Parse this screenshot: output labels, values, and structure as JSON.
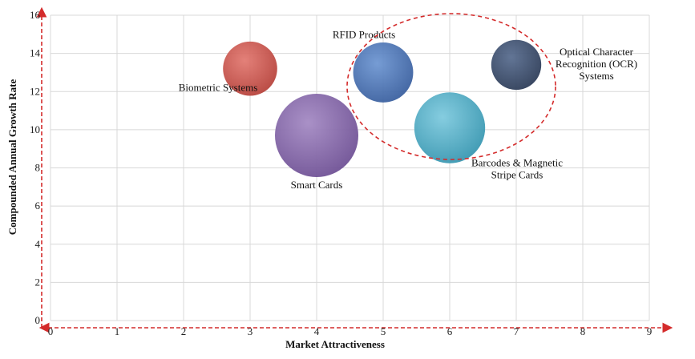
{
  "chart_data": {
    "type": "scatter",
    "subtype": "bubble",
    "xlabel": "Market Attractiveness",
    "ylabel": "Compounded Annual Growth Rate",
    "xlim": [
      0,
      9
    ],
    "ylim": [
      0,
      16
    ],
    "x_ticks": [
      "0",
      "1",
      "2",
      "3",
      "4",
      "5",
      "6",
      "7",
      "8",
      "9"
    ],
    "y_ticks": [
      "0",
      "2",
      "4",
      "6",
      "8",
      "10",
      "12",
      "14",
      "16"
    ],
    "grid": true,
    "points": [
      {
        "label": "Biometric Systems",
        "x": 3.0,
        "y": 13.2,
        "size": 0.65,
        "color": "#c9574f"
      },
      {
        "label": "Smart Cards",
        "x": 4.0,
        "y": 9.7,
        "size": 1.0,
        "color": "#8a6aab"
      },
      {
        "label": "RFID Products",
        "x": 5.0,
        "y": 13.0,
        "size": 0.72,
        "color": "#4a74b8"
      },
      {
        "label": "Barcodes & Magnetic Stripe Cards",
        "x": 6.0,
        "y": 10.1,
        "size": 0.85,
        "color": "#4cb0c8"
      },
      {
        "label": "Optical Character Recognition (OCR) Systems",
        "x": 7.0,
        "y": 13.4,
        "size": 0.6,
        "color": "#3c4f70"
      }
    ],
    "highlight": {
      "type": "ellipse",
      "members": [
        "RFID Products",
        "Barcodes & Magnetic Stripe Cards",
        "Optical Character Recognition (OCR) Systems"
      ],
      "color": "#d42b2b"
    }
  }
}
